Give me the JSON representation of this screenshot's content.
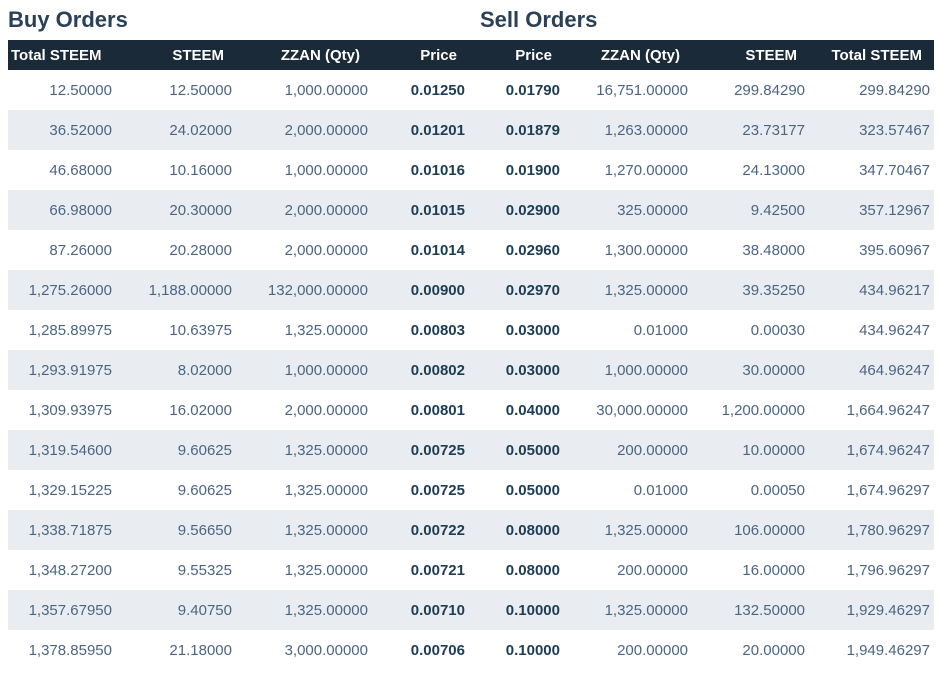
{
  "colors": {
    "header_bg": "#1b2a38",
    "header_text": "#ffffff",
    "title_text": "#2a4056",
    "cell_text": "#4a6584",
    "price_text": "#1d3c55",
    "stripe_bg": "#e9edf2"
  },
  "buy": {
    "title": "Buy Orders",
    "columns": [
      "Total STEEM",
      "STEEM",
      "ZZAN (Qty)",
      "Price"
    ],
    "rows": [
      [
        "12.50000",
        "12.50000",
        "1,000.00000",
        "0.01250"
      ],
      [
        "36.52000",
        "24.02000",
        "2,000.00000",
        "0.01201"
      ],
      [
        "46.68000",
        "10.16000",
        "1,000.00000",
        "0.01016"
      ],
      [
        "66.98000",
        "20.30000",
        "2,000.00000",
        "0.01015"
      ],
      [
        "87.26000",
        "20.28000",
        "2,000.00000",
        "0.01014"
      ],
      [
        "1,275.26000",
        "1,188.00000",
        "132,000.00000",
        "0.00900"
      ],
      [
        "1,285.89975",
        "10.63975",
        "1,325.00000",
        "0.00803"
      ],
      [
        "1,293.91975",
        "8.02000",
        "1,000.00000",
        "0.00802"
      ],
      [
        "1,309.93975",
        "16.02000",
        "2,000.00000",
        "0.00801"
      ],
      [
        "1,319.54600",
        "9.60625",
        "1,325.00000",
        "0.00725"
      ],
      [
        "1,329.15225",
        "9.60625",
        "1,325.00000",
        "0.00725"
      ],
      [
        "1,338.71875",
        "9.56650",
        "1,325.00000",
        "0.00722"
      ],
      [
        "1,348.27200",
        "9.55325",
        "1,325.00000",
        "0.00721"
      ],
      [
        "1,357.67950",
        "9.40750",
        "1,325.00000",
        "0.00710"
      ],
      [
        "1,378.85950",
        "21.18000",
        "3,000.00000",
        "0.00706"
      ]
    ]
  },
  "sell": {
    "title": "Sell Orders",
    "columns": [
      "Price",
      "ZZAN (Qty)",
      "STEEM",
      "Total STEEM"
    ],
    "rows": [
      [
        "0.01790",
        "16,751.00000",
        "299.84290",
        "299.84290"
      ],
      [
        "0.01879",
        "1,263.00000",
        "23.73177",
        "323.57467"
      ],
      [
        "0.01900",
        "1,270.00000",
        "24.13000",
        "347.70467"
      ],
      [
        "0.02900",
        "325.00000",
        "9.42500",
        "357.12967"
      ],
      [
        "0.02960",
        "1,300.00000",
        "38.48000",
        "395.60967"
      ],
      [
        "0.02970",
        "1,325.00000",
        "39.35250",
        "434.96217"
      ],
      [
        "0.03000",
        "0.01000",
        "0.00030",
        "434.96247"
      ],
      [
        "0.03000",
        "1,000.00000",
        "30.00000",
        "464.96247"
      ],
      [
        "0.04000",
        "30,000.00000",
        "1,200.00000",
        "1,664.96247"
      ],
      [
        "0.05000",
        "200.00000",
        "10.00000",
        "1,674.96247"
      ],
      [
        "0.05000",
        "0.01000",
        "0.00050",
        "1,674.96297"
      ],
      [
        "0.08000",
        "1,325.00000",
        "106.00000",
        "1,780.96297"
      ],
      [
        "0.08000",
        "200.00000",
        "16.00000",
        "1,796.96297"
      ],
      [
        "0.10000",
        "1,325.00000",
        "132.50000",
        "1,929.46297"
      ],
      [
        "0.10000",
        "200.00000",
        "20.00000",
        "1,949.46297"
      ]
    ]
  }
}
